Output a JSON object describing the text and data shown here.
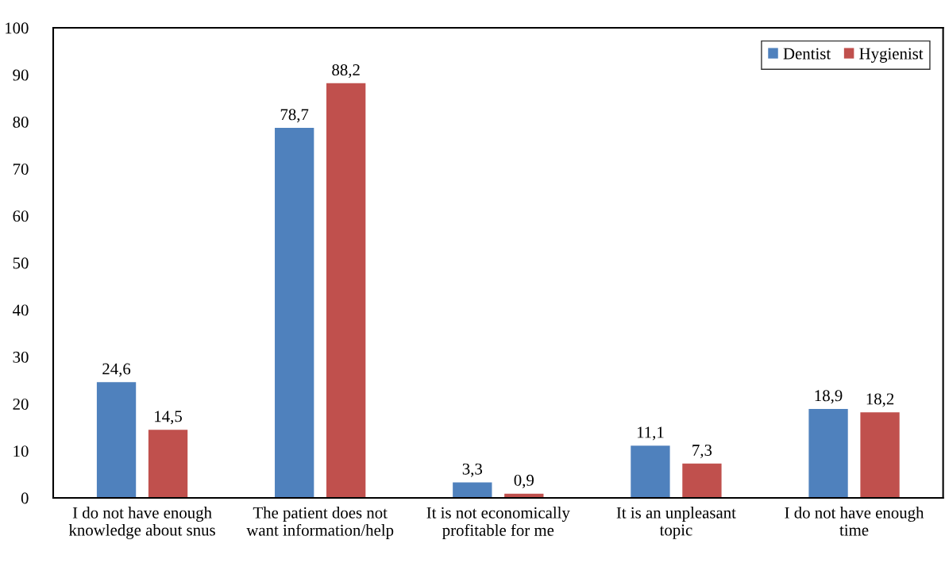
{
  "chart_data": {
    "type": "bar",
    "categories": [
      "I do not have enough\nknowledge about snus",
      "The patient does not\nwant information/help",
      "It is not economically\nprofitable for me",
      "It is an unpleasant\ntopic",
      "I do not have enough\ntime"
    ],
    "series": [
      {
        "name": "Dentist",
        "color": "#4f81bd",
        "values": [
          24.6,
          78.7,
          3.3,
          11.1,
          18.9
        ],
        "value_labels": [
          "24,6",
          "78,7",
          "3,3",
          "11,1",
          "18,9"
        ]
      },
      {
        "name": "Hygienist",
        "color": "#c0504d",
        "values": [
          14.5,
          88.2,
          0.9,
          7.3,
          18.2
        ],
        "value_labels": [
          "14,5",
          "88,2",
          "0,9",
          "7,3",
          "18,2"
        ]
      }
    ],
    "ylim": [
      0,
      100
    ],
    "yticks": [
      0,
      10,
      20,
      30,
      40,
      50,
      60,
      70,
      80,
      90,
      100
    ],
    "grid": false,
    "legend": "top right"
  }
}
